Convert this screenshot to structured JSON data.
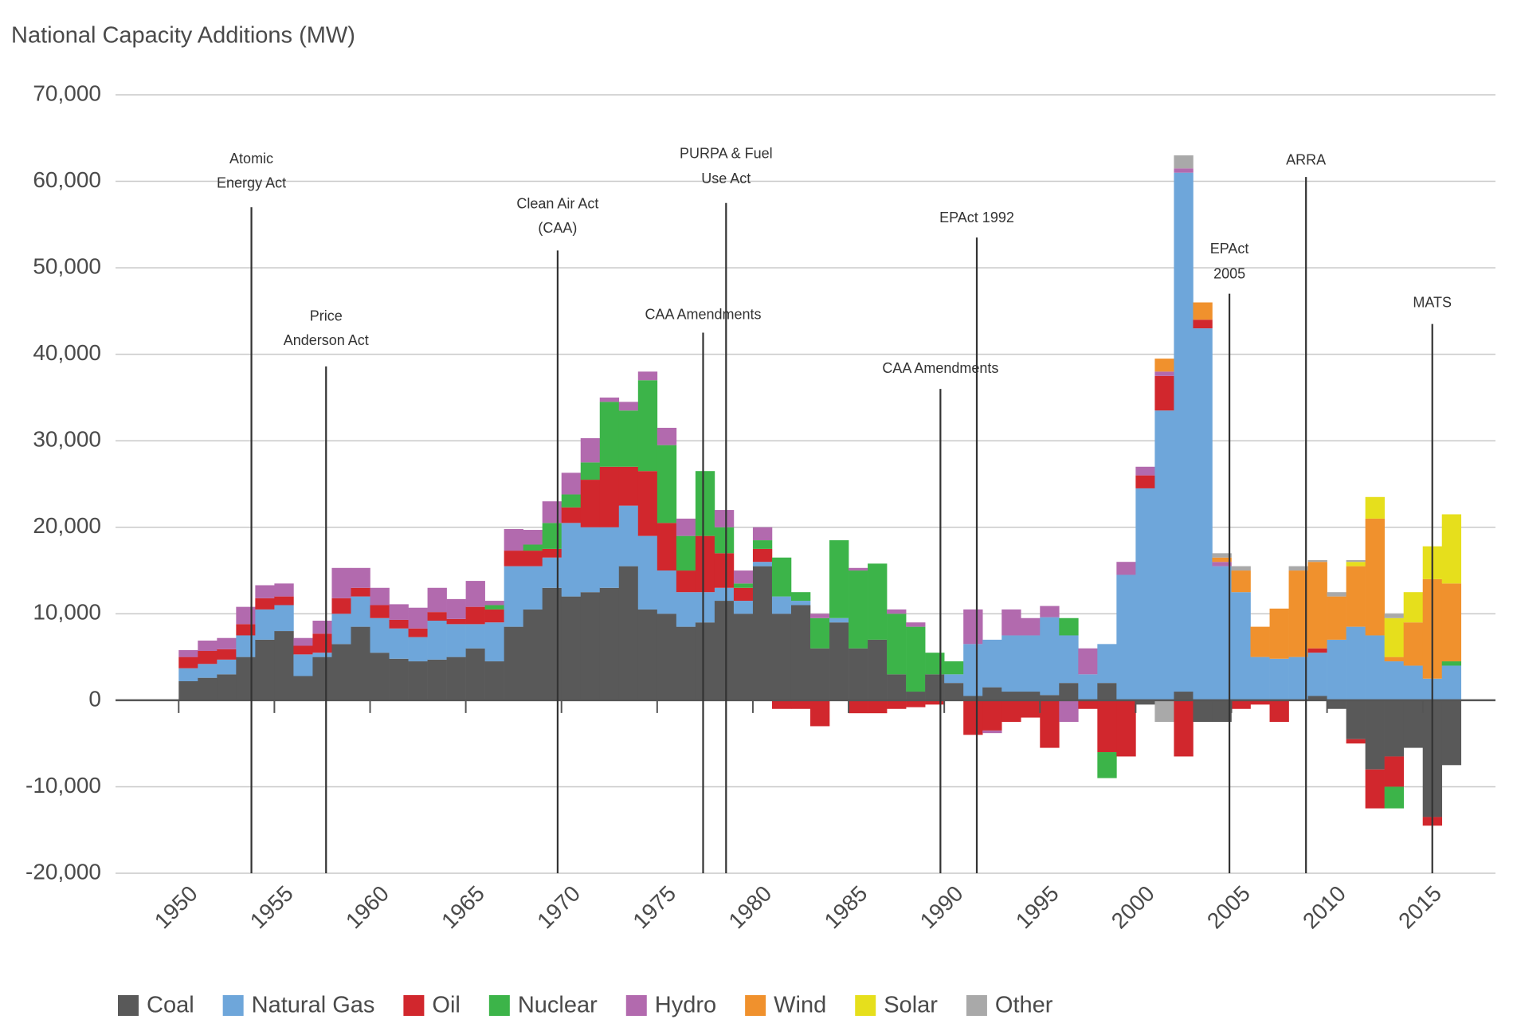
{
  "chart_data": {
    "type": "stacked_bar",
    "title": "National Capacity Additions (MW)",
    "x": [
      1950,
      1951,
      1952,
      1953,
      1954,
      1955,
      1956,
      1957,
      1958,
      1959,
      1960,
      1961,
      1962,
      1963,
      1964,
      1965,
      1966,
      1967,
      1968,
      1969,
      1970,
      1971,
      1972,
      1973,
      1974,
      1975,
      1976,
      1977,
      1978,
      1979,
      1980,
      1981,
      1982,
      1983,
      1984,
      1985,
      1986,
      1987,
      1988,
      1989,
      1990,
      1991,
      1992,
      1993,
      1994,
      1995,
      1996,
      1997,
      1998,
      1999,
      2000,
      2001,
      2002,
      2003,
      2004,
      2005,
      2006,
      2007,
      2008,
      2009,
      2010,
      2011,
      2012,
      2013,
      2014,
      2015,
      2016
    ],
    "xlim": [
      1946.7,
      2018.8
    ],
    "xticks": [
      1950,
      1955,
      1960,
      1965,
      1970,
      1975,
      1980,
      1985,
      1990,
      1995,
      2000,
      2005,
      2010,
      2015
    ],
    "ylim": [
      -20000,
      70000
    ],
    "yticks": [
      {
        "value": -20000,
        "label": "-20,000"
      },
      {
        "value": -10000,
        "label": "-10,000"
      },
      0,
      {
        "value": 10000,
        "label": "10,000"
      },
      {
        "value": 20000,
        "label": "20,000"
      },
      {
        "value": 30000,
        "label": "30,000"
      },
      {
        "value": 40000,
        "label": "40,000"
      },
      {
        "value": 50000,
        "label": "50,000"
      },
      {
        "value": 60000,
        "label": "60,000"
      },
      {
        "value": 70000,
        "label": "70,000"
      }
    ],
    "grid": true,
    "legend": "bottom",
    "series": [
      {
        "name": "Coal",
        "color": "#595959",
        "values": [
          2200,
          2600,
          3000,
          5000,
          7000,
          8000,
          2800,
          5000,
          6500,
          8500,
          5500,
          4800,
          4500,
          4700,
          5000,
          6000,
          4500,
          8500,
          10500,
          13000,
          12000,
          12500,
          13000,
          15500,
          10500,
          10000,
          8500,
          9000,
          11500,
          10000,
          15500,
          10000,
          11000,
          6000,
          9000,
          6000,
          7000,
          3000,
          1000,
          3000,
          2000,
          500,
          1500,
          1000,
          1000,
          600,
          2000,
          0,
          2000,
          0,
          -500,
          0,
          1000,
          -2500,
          -2500,
          0,
          0,
          0,
          0,
          500,
          -1000,
          -4500,
          -8000,
          -6500,
          -5500,
          -13500,
          -7500
        ]
      },
      {
        "name": "Natural Gas",
        "color": "#6ea6da",
        "values": [
          1500,
          1600,
          1700,
          2500,
          3500,
          3000,
          2500,
          500,
          3500,
          3500,
          4000,
          3500,
          2800,
          4500,
          3800,
          2800,
          4500,
          7000,
          5000,
          3500,
          8500,
          7500,
          7000,
          7000,
          8500,
          5000,
          4000,
          3500,
          1500,
          1500,
          500,
          2000,
          500,
          0,
          500,
          0,
          0,
          0,
          0,
          0,
          1000,
          6000,
          5500,
          6500,
          6500,
          9000,
          5500,
          3000,
          4500,
          14500,
          24500,
          33500,
          60000,
          43000,
          15500,
          12500,
          5000,
          4800,
          5000,
          5000,
          7000,
          8500,
          7500,
          4500,
          4000,
          2500,
          4000
        ]
      },
      {
        "name": "Oil",
        "color": "#d1272d",
        "values": [
          1300,
          1500,
          1200,
          1300,
          1300,
          1000,
          1000,
          2200,
          1800,
          1000,
          1500,
          1000,
          1000,
          1000,
          600,
          2000,
          1500,
          1800,
          1800,
          1000,
          1800,
          5500,
          7000,
          4500,
          7500,
          5500,
          2500,
          6500,
          4000,
          1500,
          1500,
          -1000,
          -1000,
          -3000,
          0,
          -1500,
          -1500,
          -1000,
          -800,
          -500,
          0,
          -4000,
          -3500,
          -2500,
          -2000,
          -5500,
          0,
          -1000,
          -6000,
          -6500,
          1500,
          4000,
          -6500,
          1000,
          0,
          -1000,
          -500,
          -2500,
          0,
          500,
          0,
          -500,
          -4500,
          -3500,
          0,
          -1000,
          0
        ]
      },
      {
        "name": "Nuclear",
        "color": "#3cb449",
        "values": [
          0,
          0,
          0,
          0,
          0,
          0,
          0,
          0,
          0,
          0,
          0,
          0,
          0,
          0,
          0,
          0,
          500,
          0,
          700,
          3000,
          1500,
          2000,
          7500,
          6500,
          10500,
          9000,
          4000,
          7500,
          3000,
          500,
          1000,
          4500,
          1000,
          3500,
          9000,
          9000,
          8800,
          7000,
          7500,
          2500,
          1500,
          0,
          0,
          0,
          0,
          0,
          2000,
          0,
          -3000,
          0,
          0,
          0,
          0,
          0,
          0,
          0,
          0,
          0,
          0,
          0,
          0,
          0,
          0,
          -2500,
          0,
          0,
          500
        ]
      },
      {
        "name": "Hydro",
        "color": "#b26aae",
        "values": [
          800,
          1200,
          1300,
          2000,
          1500,
          1500,
          900,
          1500,
          3500,
          2300,
          2000,
          1800,
          2400,
          2800,
          2300,
          3000,
          500,
          2500,
          1700,
          2500,
          2500,
          2800,
          500,
          1000,
          1000,
          2000,
          2000,
          0,
          2000,
          1500,
          1500,
          0,
          0,
          500,
          0,
          300,
          0,
          500,
          500,
          0,
          0,
          4000,
          -300,
          3000,
          2000,
          1300,
          -2500,
          3000,
          0,
          1500,
          1000,
          500,
          500,
          0,
          500,
          0,
          0,
          0,
          0,
          0,
          0,
          0,
          0,
          0,
          0,
          0,
          0
        ]
      },
      {
        "name": "Wind",
        "color": "#f0912d",
        "values": [
          0,
          0,
          0,
          0,
          0,
          0,
          0,
          0,
          0,
          0,
          0,
          0,
          0,
          0,
          0,
          0,
          0,
          0,
          0,
          0,
          0,
          0,
          0,
          0,
          0,
          0,
          0,
          0,
          0,
          0,
          0,
          0,
          0,
          0,
          0,
          0,
          0,
          0,
          0,
          0,
          0,
          0,
          0,
          0,
          0,
          0,
          0,
          0,
          0,
          0,
          0,
          1500,
          0,
          2000,
          500,
          2500,
          3500,
          5800,
          10000,
          10000,
          5000,
          7000,
          13500,
          500,
          5000,
          11500,
          9000
        ]
      },
      {
        "name": "Solar",
        "color": "#e6df1c",
        "values": [
          0,
          0,
          0,
          0,
          0,
          0,
          0,
          0,
          0,
          0,
          0,
          0,
          0,
          0,
          0,
          0,
          0,
          0,
          0,
          0,
          0,
          0,
          0,
          0,
          0,
          0,
          0,
          0,
          0,
          0,
          0,
          0,
          0,
          0,
          0,
          0,
          0,
          0,
          0,
          0,
          0,
          0,
          0,
          0,
          0,
          0,
          0,
          0,
          0,
          0,
          0,
          0,
          0,
          0,
          0,
          0,
          0,
          0,
          0,
          0,
          0,
          500,
          2500,
          4500,
          3500,
          3800,
          8000
        ]
      },
      {
        "name": "Other",
        "color": "#a9a9a9",
        "values": [
          0,
          0,
          0,
          0,
          0,
          0,
          0,
          0,
          0,
          0,
          0,
          0,
          0,
          0,
          0,
          0,
          0,
          0,
          0,
          0,
          0,
          0,
          0,
          0,
          0,
          0,
          0,
          0,
          0,
          0,
          0,
          0,
          0,
          0,
          0,
          0,
          0,
          0,
          0,
          0,
          0,
          0,
          0,
          0,
          0,
          0,
          0,
          0,
          0,
          0,
          0,
          -2500,
          1500,
          0,
          500,
          500,
          0,
          0,
          500,
          200,
          500,
          200,
          0,
          500,
          0,
          0,
          0
        ]
      }
    ],
    "annotations": [
      {
        "lines": [
          "Atomic",
          "Energy Act"
        ],
        "x": 1953.8,
        "y": [
          62500,
          59700
        ],
        "top": 57000
      },
      {
        "lines": [
          "Price",
          "Anderson Act"
        ],
        "x": 1957.7,
        "y": [
          44300,
          41500
        ],
        "top": 38600
      },
      {
        "lines": [
          "Clean Air Act",
          "(CAA)"
        ],
        "x": 1969.8,
        "y": [
          57300,
          54500
        ],
        "top": 52000
      },
      {
        "lines": [
          "CAA Amendments"
        ],
        "x": 1977.4,
        "y": [
          44500
        ],
        "top": 42500
      },
      {
        "lines": [
          "PURPA & Fuel",
          "Use Act"
        ],
        "x": 1978.6,
        "y": [
          63100,
          60200
        ],
        "top": 57500
      },
      {
        "lines": [
          "CAA Amendments"
        ],
        "x": 1989.8,
        "y": [
          38300
        ],
        "top": 36000
      },
      {
        "lines": [
          "EPAct 1992"
        ],
        "x": 1991.7,
        "y": [
          55700
        ],
        "top": 53500
      },
      {
        "lines": [
          "EPAct",
          "2005"
        ],
        "x": 2004.9,
        "y": [
          52100,
          49200
        ],
        "top": 47000
      },
      {
        "lines": [
          "ARRA"
        ],
        "x": 2008.9,
        "y": [
          62400
        ],
        "top": 60500
      },
      {
        "lines": [
          "MATS"
        ],
        "x": 2015.5,
        "y": [
          45900
        ],
        "top": 43500
      }
    ]
  }
}
